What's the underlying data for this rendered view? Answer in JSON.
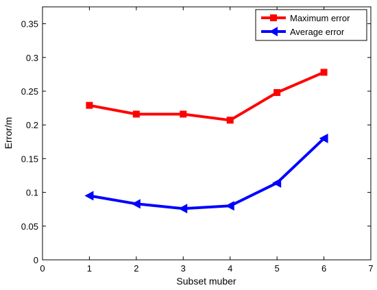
{
  "chart_data": {
    "type": "line",
    "title": "",
    "xlabel": "Subset muber",
    "ylabel": "Error/m",
    "xlim": [
      0,
      7
    ],
    "ylim": [
      0,
      0.375
    ],
    "xticks": [
      0,
      1,
      2,
      3,
      4,
      5,
      6,
      7
    ],
    "yticks": [
      0,
      0.05,
      0.1,
      0.15,
      0.2,
      0.25,
      0.3,
      0.35
    ],
    "grid": false,
    "legend_position": "top-right",
    "x": [
      1,
      2,
      3,
      4,
      5,
      6
    ],
    "series": [
      {
        "name": "Maximum error",
        "color": "#ff0000",
        "marker": "square",
        "values": [
          0.229,
          0.216,
          0.216,
          0.207,
          0.248,
          0.278
        ]
      },
      {
        "name": "Average error",
        "color": "#0000ff",
        "marker": "left-triangle",
        "values": [
          0.095,
          0.083,
          0.076,
          0.08,
          0.114,
          0.18
        ]
      }
    ]
  }
}
